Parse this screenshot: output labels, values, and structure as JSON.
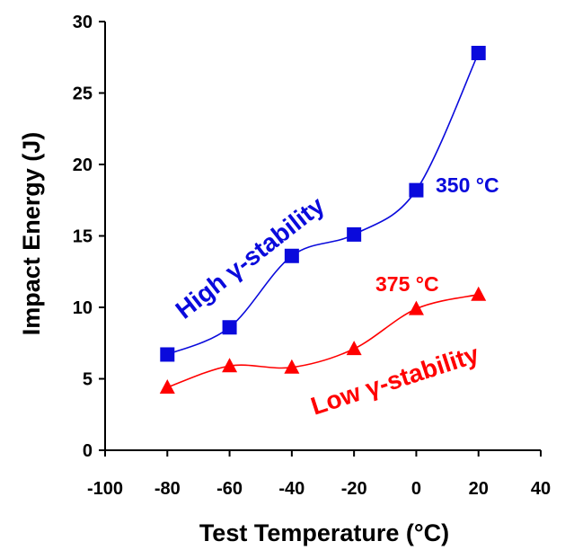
{
  "chart_data": {
    "type": "line",
    "xlabel": "Test Temperature (°C)",
    "ylabel": "Impact Energy (J)",
    "xlim": [
      -100,
      40
    ],
    "ylim": [
      0,
      30
    ],
    "x_ticks": [
      -100,
      -80,
      -60,
      -40,
      -20,
      0,
      20,
      40
    ],
    "y_ticks": [
      0,
      5,
      10,
      15,
      20,
      25,
      30
    ],
    "x_tick_labels": [
      "-100",
      "-80",
      "-60",
      "-40",
      "-20",
      "0",
      "20",
      "40"
    ],
    "y_tick_labels": [
      "0",
      "5",
      "10",
      "15",
      "20",
      "25",
      "30"
    ],
    "grid": false,
    "x": [
      -80,
      -60,
      -40,
      -20,
      0,
      20
    ],
    "series": [
      {
        "name": "350 °C",
        "values": [
          6.7,
          8.6,
          13.6,
          15.1,
          18.2,
          27.8
        ],
        "color": "#0a0adc",
        "marker": "square",
        "smooth": true
      },
      {
        "name": "375 °C",
        "values": [
          4.4,
          5.9,
          5.8,
          7.1,
          9.9,
          10.9
        ],
        "color": "#ff0000",
        "marker": "triangle",
        "smooth": true
      }
    ],
    "annotations": [
      {
        "text": "350 °C",
        "color": "#0a0adc"
      },
      {
        "text": "375 °C",
        "color": "#ff0000"
      },
      {
        "text": "High γ-stability",
        "color": "#0a0adc"
      },
      {
        "text": "Low γ-stability",
        "color": "#ff0000"
      }
    ]
  }
}
